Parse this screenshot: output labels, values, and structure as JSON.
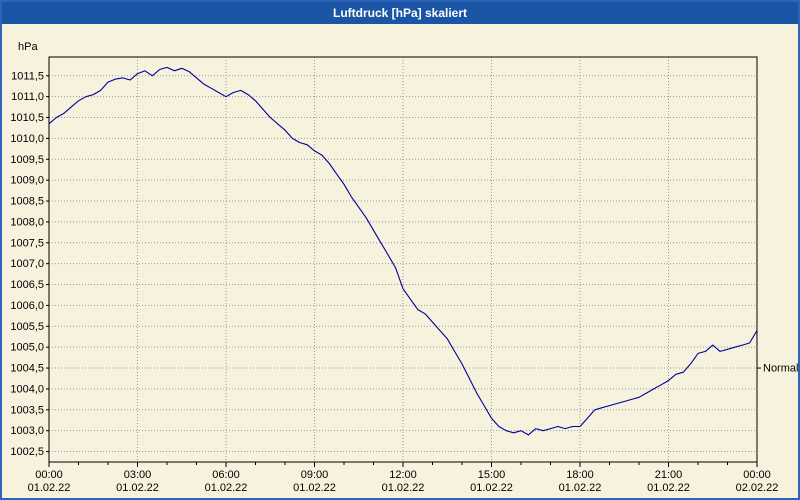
{
  "window": {
    "title": "Luftdruck [hPa] skaliert"
  },
  "colors": {
    "title_bar": "#1a56a5",
    "window_border": "#2d64b8",
    "background": "#f6f2de",
    "line": "#000099",
    "grid": "#9a9a9a",
    "axis": "#000000",
    "text": "#000000"
  },
  "chart_data": {
    "type": "line",
    "title": "Luftdruck [hPa] skaliert",
    "ylabel": "hPa",
    "xlabel": "",
    "grid": true,
    "legend_position": "none",
    "ylim": [
      1002.25,
      1011.95
    ],
    "xlim": [
      0,
      24
    ],
    "y_tick_labels": [
      "1011,5",
      "1011,0",
      "1010,5",
      "1010,0",
      "1009,5",
      "1009,0",
      "1008,5",
      "1008,0",
      "1007,5",
      "1007,0",
      "1006,5",
      "1006,0",
      "1005,5",
      "1005,0",
      "1004,5",
      "1004,0",
      "1003,5",
      "1003,0",
      "1002,5"
    ],
    "x_ticks": [
      0,
      3,
      6,
      9,
      12,
      15,
      18,
      21,
      24
    ],
    "x_tick_labels": [
      {
        "time": "00:00",
        "date": "01.02.22"
      },
      {
        "time": "03:00",
        "date": "01.02.22"
      },
      {
        "time": "06:00",
        "date": "01.02.22"
      },
      {
        "time": "09:00",
        "date": "01.02.22"
      },
      {
        "time": "12:00",
        "date": "01.02.22"
      },
      {
        "time": "15:00",
        "date": "01.02.22"
      },
      {
        "time": "18:00",
        "date": "01.02.22"
      },
      {
        "time": "21:00",
        "date": "01.02.22"
      },
      {
        "time": "00:00",
        "date": "02.02.22"
      }
    ],
    "normal_marker": {
      "label": "Normal",
      "value": 1004.5
    },
    "series": [
      {
        "name": "Luftdruck",
        "color": "#000099",
        "points": [
          [
            0,
            1010.35
          ],
          [
            0.25,
            1010.5
          ],
          [
            0.5,
            1010.6
          ],
          [
            0.75,
            1010.75
          ],
          [
            1,
            1010.9
          ],
          [
            1.25,
            1011.0
          ],
          [
            1.5,
            1011.05
          ],
          [
            1.75,
            1011.15
          ],
          [
            2,
            1011.35
          ],
          [
            2.25,
            1011.42
          ],
          [
            2.5,
            1011.45
          ],
          [
            2.75,
            1011.4
          ],
          [
            3,
            1011.55
          ],
          [
            3.25,
            1011.62
          ],
          [
            3.5,
            1011.5
          ],
          [
            3.75,
            1011.65
          ],
          [
            4,
            1011.7
          ],
          [
            4.25,
            1011.62
          ],
          [
            4.5,
            1011.68
          ],
          [
            4.75,
            1011.6
          ],
          [
            5,
            1011.45
          ],
          [
            5.25,
            1011.3
          ],
          [
            5.5,
            1011.2
          ],
          [
            5.75,
            1011.1
          ],
          [
            6,
            1011.0
          ],
          [
            6.25,
            1011.1
          ],
          [
            6.5,
            1011.15
          ],
          [
            6.75,
            1011.05
          ],
          [
            7,
            1010.9
          ],
          [
            7.25,
            1010.7
          ],
          [
            7.5,
            1010.5
          ],
          [
            7.75,
            1010.35
          ],
          [
            8,
            1010.2
          ],
          [
            8.25,
            1010.0
          ],
          [
            8.5,
            1009.9
          ],
          [
            8.75,
            1009.85
          ],
          [
            9,
            1009.7
          ],
          [
            9.25,
            1009.6
          ],
          [
            9.5,
            1009.4
          ],
          [
            9.75,
            1009.15
          ],
          [
            10,
            1008.9
          ],
          [
            10.25,
            1008.6
          ],
          [
            10.5,
            1008.35
          ],
          [
            10.75,
            1008.1
          ],
          [
            11,
            1007.8
          ],
          [
            11.25,
            1007.5
          ],
          [
            11.5,
            1007.2
          ],
          [
            11.75,
            1006.9
          ],
          [
            12,
            1006.4
          ],
          [
            12.25,
            1006.15
          ],
          [
            12.5,
            1005.9
          ],
          [
            12.75,
            1005.8
          ],
          [
            13,
            1005.6
          ],
          [
            13.25,
            1005.4
          ],
          [
            13.5,
            1005.2
          ],
          [
            13.75,
            1004.9
          ],
          [
            14,
            1004.6
          ],
          [
            14.25,
            1004.25
          ],
          [
            14.5,
            1003.9
          ],
          [
            14.75,
            1003.6
          ],
          [
            15,
            1003.3
          ],
          [
            15.25,
            1003.1
          ],
          [
            15.5,
            1003.0
          ],
          [
            15.75,
            1002.95
          ],
          [
            16,
            1003.0
          ],
          [
            16.25,
            1002.9
          ],
          [
            16.5,
            1003.05
          ],
          [
            16.75,
            1003.0
          ],
          [
            17,
            1003.05
          ],
          [
            17.25,
            1003.1
          ],
          [
            17.5,
            1003.05
          ],
          [
            17.75,
            1003.1
          ],
          [
            18,
            1003.1
          ],
          [
            18.25,
            1003.3
          ],
          [
            18.5,
            1003.5
          ],
          [
            18.75,
            1003.55
          ],
          [
            19,
            1003.6
          ],
          [
            19.25,
            1003.65
          ],
          [
            19.5,
            1003.7
          ],
          [
            19.75,
            1003.75
          ],
          [
            20,
            1003.8
          ],
          [
            20.25,
            1003.9
          ],
          [
            20.5,
            1004.0
          ],
          [
            20.75,
            1004.1
          ],
          [
            21,
            1004.2
          ],
          [
            21.25,
            1004.35
          ],
          [
            21.5,
            1004.4
          ],
          [
            21.75,
            1004.6
          ],
          [
            22,
            1004.85
          ],
          [
            22.25,
            1004.9
          ],
          [
            22.5,
            1005.05
          ],
          [
            22.75,
            1004.9
          ],
          [
            23,
            1004.95
          ],
          [
            23.25,
            1005.0
          ],
          [
            23.5,
            1005.05
          ],
          [
            23.75,
            1005.1
          ],
          [
            24,
            1005.4
          ]
        ]
      }
    ]
  }
}
